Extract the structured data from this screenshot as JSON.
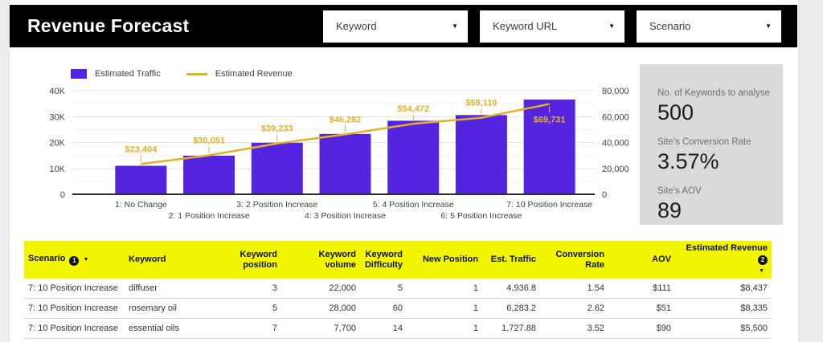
{
  "header": {
    "title": "Revenue Forecast",
    "filters": [
      {
        "label": "Keyword"
      },
      {
        "label": "Keyword URL"
      },
      {
        "label": "Scenario"
      }
    ]
  },
  "chart_data": {
    "type": "combo",
    "categories": [
      "1: No Change",
      "2: 1 Position Increase",
      "3: 2 Position Increase",
      "4: 3 Position Increase",
      "5: 4 Position Increase",
      "6: 5 Position Increase",
      "7: 10 Position Increase"
    ],
    "series": [
      {
        "name": "Estimated Traffic",
        "type": "bar",
        "axis": "left",
        "color": "#5524e0",
        "values": [
          11000,
          14900,
          19900,
          23300,
          28400,
          30600,
          36600
        ]
      },
      {
        "name": "Estimated Revenue",
        "type": "line",
        "axis": "right",
        "color": "#e3b02a",
        "values": [
          23404,
          30051,
          39233,
          46282,
          54472,
          59110,
          69731
        ],
        "point_labels": [
          "$23,404",
          "$30,051",
          "$39,233",
          "$46,282",
          "$54,472",
          "$59,110",
          "$69,731"
        ]
      }
    ],
    "left_axis": {
      "min": 0,
      "max": 40000,
      "ticks": [
        "0",
        "10K",
        "20K",
        "30K",
        "40K"
      ]
    },
    "right_axis": {
      "min": 0,
      "max": 80000,
      "ticks": [
        "0",
        "20,000",
        "40,000",
        "60,000",
        "80,000"
      ]
    },
    "grid": true,
    "legend_position": "top-left"
  },
  "summary_panel": {
    "stats": [
      {
        "label": "No. of Keywords to analyse",
        "value": "500"
      },
      {
        "label": "Site's Conversion Rate",
        "value": "3.57%"
      },
      {
        "label": "Site's AOV",
        "value": "89"
      }
    ]
  },
  "table": {
    "columns": [
      {
        "label": "Scenario",
        "sort_badge": "1",
        "sort_caret": "right"
      },
      {
        "label": "Keyword"
      },
      {
        "label": "Keyword position"
      },
      {
        "label": "Keyword volume"
      },
      {
        "label": "Keyword Difficulty"
      },
      {
        "label": "New Position"
      },
      {
        "label": "Est. Traffic"
      },
      {
        "label": "Conversion Rate"
      },
      {
        "label": "AOV"
      },
      {
        "label": "Estimated Revenue",
        "sort_badge": "2",
        "sort_caret": "below"
      }
    ],
    "rows": [
      [
        "7: 10 Position Increase",
        "diffuser",
        "3",
        "22,000",
        "5",
        "1",
        "4,936.8",
        "1.54",
        "$111",
        "$8,437"
      ],
      [
        "7: 10 Position Increase",
        "rosemary oil",
        "5",
        "28,000",
        "60",
        "1",
        "6,283.2",
        "2.62",
        "$51",
        "$8,335"
      ],
      [
        "7: 10 Position Increase",
        "essential oils",
        "7",
        "7,700",
        "14",
        "1",
        "1,727.88",
        "3.52",
        "$90",
        "$5,500"
      ]
    ]
  },
  "colors": {
    "bar": "#5524e0",
    "line": "#e3b02a",
    "table_header_bg": "#f1f502",
    "panel_bg": "#dadada",
    "topbar_bg": "#000000",
    "gutter_bg": "#ececec"
  }
}
